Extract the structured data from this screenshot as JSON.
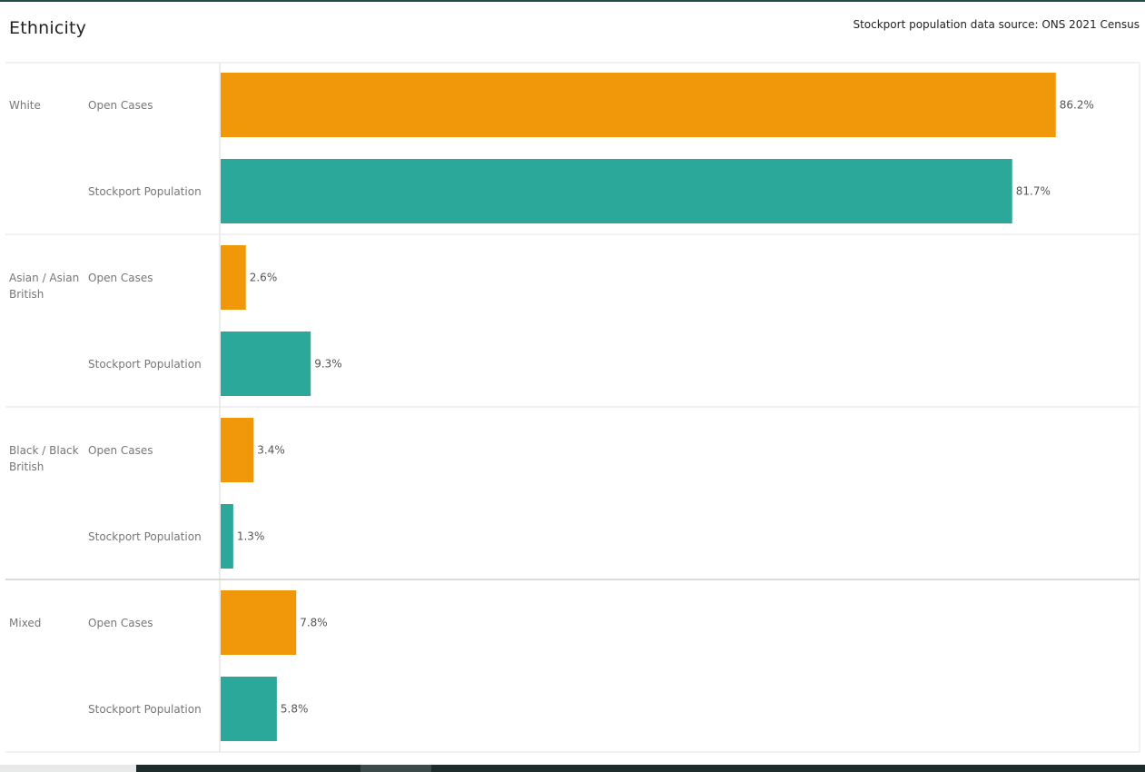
{
  "page": {
    "title": "Ethnicity",
    "source_note": "Stockport population data source: ONS 2021 Census"
  },
  "colors": {
    "Open Cases": "#f0980a",
    "Stockport Population": "#2ca89a",
    "grid": "#e6e6e6",
    "label": "#777777"
  },
  "chart_data": {
    "type": "bar",
    "orientation": "horizontal",
    "categories": [
      "White",
      "Asian / Asian British",
      "Black / Black British",
      "Mixed"
    ],
    "series": [
      {
        "name": "Open Cases",
        "values": [
          86.2,
          2.6,
          3.4,
          7.8
        ]
      },
      {
        "name": "Stockport Population",
        "values": [
          81.7,
          9.3,
          1.3,
          5.8
        ]
      }
    ],
    "data_labels": [
      [
        "86.2%",
        "81.7%"
      ],
      [
        "2.6%",
        "9.3%"
      ],
      [
        "3.4%",
        "1.3%"
      ],
      [
        "7.8%",
        "5.8%"
      ]
    ],
    "xlim": [
      0,
      100
    ],
    "grid": false,
    "legend": "none"
  }
}
